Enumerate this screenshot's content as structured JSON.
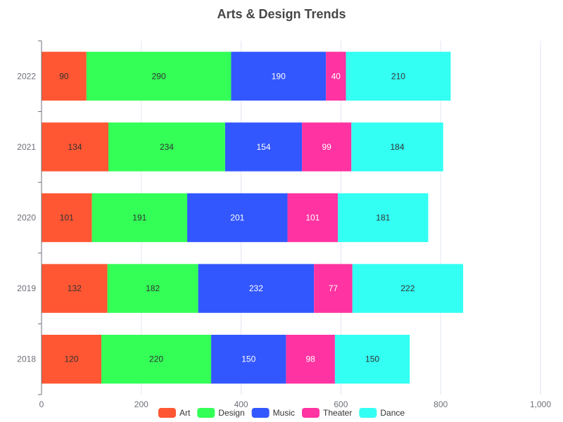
{
  "chart_data": {
    "type": "bar",
    "orientation": "horizontal",
    "stacked": true,
    "title": "Arts & Design Trends",
    "categories": [
      "2018",
      "2019",
      "2020",
      "2021",
      "2022"
    ],
    "series": [
      {
        "name": "Art",
        "color": "#ff5733",
        "label_color": "#333333",
        "values": [
          120,
          132,
          101,
          134,
          90
        ]
      },
      {
        "name": "Design",
        "color": "#33ff57",
        "label_color": "#333333",
        "values": [
          220,
          182,
          191,
          234,
          290
        ]
      },
      {
        "name": "Music",
        "color": "#3357ff",
        "label_color": "#ffffff",
        "values": [
          150,
          232,
          201,
          154,
          190
        ]
      },
      {
        "name": "Theater",
        "color": "#ff33a1",
        "label_color": "#ffffff",
        "values": [
          98,
          77,
          101,
          99,
          40
        ]
      },
      {
        "name": "Dance",
        "color": "#33fff3",
        "label_color": "#333333",
        "values": [
          150,
          222,
          181,
          184,
          210
        ]
      }
    ],
    "x_ticks": [
      "0",
      "200",
      "400",
      "600",
      "800",
      "1,000"
    ],
    "xlim": [
      0,
      1000
    ],
    "grid": true,
    "legend_position": "bottom"
  }
}
